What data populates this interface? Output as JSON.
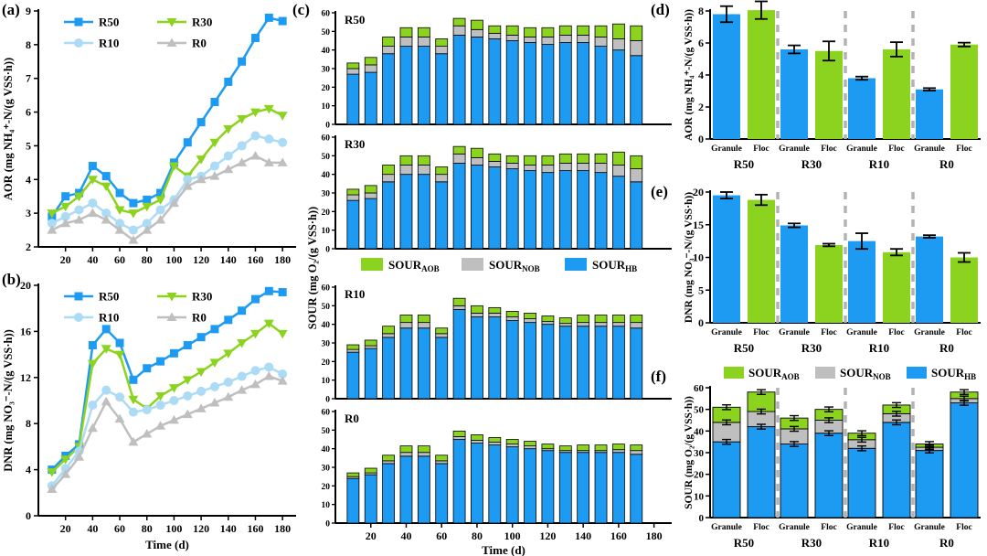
{
  "colors": {
    "blue": "#1D9BF2",
    "green": "#8CD31F",
    "lightblue": "#ABDBF5",
    "gray": "#BFBFBF",
    "axis": "#000000",
    "separator": "#B3B3B3"
  },
  "panel_letters": {
    "a": "(a)",
    "b": "(b)",
    "c": "(c)",
    "d": "(d)",
    "e": "(e)",
    "f": "(f)"
  },
  "chart_data": [
    {
      "id": "a",
      "type": "line",
      "ylabel": "AOR (mg NH₄⁺-N/(g VSS·h))",
      "xlabel": "",
      "ylim": [
        2,
        9
      ],
      "yticks": [
        2,
        3,
        4,
        5,
        6,
        7,
        8,
        9
      ],
      "xticks": [
        20,
        40,
        60,
        80,
        100,
        120,
        140,
        160,
        180
      ],
      "x": [
        10,
        20,
        30,
        40,
        50,
        60,
        70,
        80,
        90,
        100,
        110,
        120,
        130,
        140,
        150,
        160,
        170,
        180
      ],
      "series": [
        {
          "name": "R50",
          "color": "blue",
          "marker": "square",
          "values": [
            2.9,
            3.5,
            3.6,
            4.4,
            4.1,
            3.6,
            3.3,
            3.4,
            3.6,
            4.5,
            5.1,
            5.7,
            6.3,
            6.9,
            7.5,
            8.2,
            8.8,
            8.7
          ]
        },
        {
          "name": "R30",
          "color": "green",
          "marker": "tri-down",
          "values": [
            3.0,
            3.2,
            3.5,
            4.0,
            3.8,
            3.1,
            3.0,
            3.2,
            3.4,
            4.4,
            4.1,
            4.6,
            5.1,
            5.5,
            5.8,
            6.0,
            6.1,
            5.9
          ]
        },
        {
          "name": "R10",
          "color": "lightblue",
          "marker": "circle",
          "values": [
            2.7,
            2.9,
            3.1,
            3.3,
            3.0,
            2.7,
            2.5,
            2.7,
            3.1,
            3.4,
            4.0,
            4.1,
            4.4,
            4.7,
            5.0,
            5.3,
            5.2,
            5.1
          ]
        },
        {
          "name": "R0",
          "color": "gray",
          "marker": "tri-up",
          "values": [
            2.5,
            2.7,
            2.8,
            3.0,
            2.8,
            2.5,
            2.2,
            2.5,
            2.8,
            3.3,
            3.8,
            4.0,
            4.1,
            4.3,
            4.5,
            4.7,
            4.5,
            4.5
          ]
        }
      ]
    },
    {
      "id": "b",
      "type": "line",
      "ylabel": "DNR (mg NO₃⁻-N/(g VSS·h))",
      "xlabel": "Time (d)",
      "ylim": [
        0,
        20
      ],
      "yticks": [
        0,
        4,
        8,
        12,
        16,
        20
      ],
      "xticks": [
        20,
        40,
        60,
        80,
        100,
        120,
        140,
        160,
        180
      ],
      "x": [
        10,
        20,
        30,
        40,
        50,
        60,
        70,
        80,
        90,
        100,
        110,
        120,
        130,
        140,
        150,
        160,
        170,
        180
      ],
      "series": [
        {
          "name": "R50",
          "color": "blue",
          "marker": "square",
          "values": [
            4.0,
            5.2,
            6.2,
            14.8,
            16.2,
            15.0,
            11.8,
            12.8,
            13.4,
            14.1,
            14.8,
            15.5,
            16.2,
            17.0,
            17.8,
            18.8,
            19.5,
            19.4
          ]
        },
        {
          "name": "R30",
          "color": "green",
          "marker": "tri-down",
          "values": [
            3.8,
            4.9,
            6.0,
            13.2,
            14.5,
            14.0,
            10.1,
            9.3,
            10.4,
            11.1,
            11.8,
            12.5,
            13.3,
            14.1,
            15.0,
            15.8,
            16.7,
            15.8
          ]
        },
        {
          "name": "R10",
          "color": "lightblue",
          "marker": "circle",
          "values": [
            2.6,
            4.1,
            5.6,
            9.6,
            10.9,
            10.3,
            9.0,
            9.2,
            9.6,
            10.0,
            10.4,
            10.8,
            11.2,
            11.6,
            12.1,
            12.6,
            12.9,
            12.3
          ]
        },
        {
          "name": "R0",
          "color": "gray",
          "marker": "tri-up",
          "values": [
            2.3,
            3.6,
            5.1,
            7.6,
            9.9,
            8.4,
            6.4,
            7.1,
            7.8,
            8.3,
            8.8,
            9.3,
            9.8,
            10.3,
            10.9,
            11.4,
            12.1,
            11.7
          ]
        }
      ]
    },
    {
      "id": "c",
      "type": "stacked-bar",
      "ylabel": "SOUR (mg O₂/(g VSS·h))",
      "xlabel": "Time (d)",
      "ylim": [
        0,
        60
      ],
      "yticks": [
        0,
        10,
        20,
        30,
        40,
        50,
        60
      ],
      "xticks": [
        20,
        40,
        60,
        80,
        100,
        120,
        140,
        160,
        180
      ],
      "x": [
        10,
        20,
        30,
        40,
        50,
        60,
        70,
        80,
        90,
        100,
        110,
        120,
        130,
        140,
        150,
        160,
        170
      ],
      "legend": [
        {
          "label": "SOUR",
          "sub": "AOB",
          "color": "green"
        },
        {
          "label": "SOUR",
          "sub": "NOB",
          "color": "gray"
        },
        {
          "label": "SOUR",
          "sub": "HB",
          "color": "blue"
        }
      ],
      "subpanels": [
        {
          "label": "R50",
          "hb": [
            27,
            28,
            38,
            42,
            42,
            38,
            48,
            47,
            46,
            45,
            44,
            43,
            44,
            44,
            42,
            40,
            37
          ],
          "nob": [
            3,
            4,
            4,
            5,
            5,
            4,
            5,
            4,
            3,
            3,
            3,
            4,
            4,
            4,
            5,
            6,
            8
          ],
          "aob": [
            3,
            4,
            5,
            5,
            5,
            4,
            4,
            5,
            4,
            5,
            5,
            5,
            5,
            5,
            6,
            8,
            8
          ]
        },
        {
          "label": "R30",
          "hb": [
            26,
            27,
            36,
            40,
            40,
            36,
            46,
            45,
            44,
            43,
            42,
            41,
            42,
            42,
            41,
            39,
            36
          ],
          "nob": [
            3,
            3,
            4,
            5,
            5,
            4,
            5,
            4,
            3,
            3,
            3,
            4,
            4,
            4,
            5,
            6,
            7
          ],
          "aob": [
            3,
            4,
            5,
            5,
            5,
            4,
            4,
            5,
            4,
            4,
            5,
            5,
            5,
            5,
            5,
            7,
            7
          ]
        },
        {
          "label": "R10",
          "hb": [
            25,
            27,
            33,
            38,
            38,
            33,
            48,
            44,
            44,
            42,
            41,
            40,
            39,
            39,
            39,
            39,
            38
          ],
          "nob": [
            1.5,
            1.5,
            2,
            3,
            3,
            2,
            2,
            2,
            2,
            2,
            2,
            1.5,
            1.5,
            2,
            2,
            2,
            3
          ],
          "aob": [
            2.5,
            3,
            4,
            4,
            4,
            3,
            4,
            4,
            3,
            3,
            3,
            3,
            3,
            4,
            4,
            4,
            4
          ]
        },
        {
          "label": "R0",
          "hb": [
            24,
            26,
            32,
            36,
            36,
            32,
            45,
            43,
            42,
            41,
            40,
            39,
            38,
            38,
            38,
            38,
            37
          ],
          "nob": [
            1,
            1,
            1.5,
            2,
            2,
            1.5,
            1.5,
            1.5,
            1.5,
            1.5,
            1.5,
            1,
            1,
            1,
            1,
            1.5,
            2
          ],
          "aob": [
            2,
            2.5,
            3,
            3.5,
            3.5,
            3,
            3,
            3,
            2.5,
            2.5,
            2.5,
            2.5,
            2.5,
            3,
            3,
            3,
            3
          ]
        }
      ]
    },
    {
      "id": "d",
      "type": "grouped-bar",
      "ylabel": "AOR (mg NH₄⁺-N/(g VSS·h))",
      "ylim": [
        0,
        8
      ],
      "yticks": [
        0,
        2,
        4,
        6,
        8
      ],
      "groups": [
        "R50",
        "R30",
        "R10",
        "R0"
      ],
      "series": [
        {
          "name": "Granule",
          "color": "blue",
          "values": [
            7.8,
            5.6,
            3.8,
            3.1
          ],
          "errors": [
            0.5,
            0.25,
            0.1,
            0.08
          ]
        },
        {
          "name": "Floc",
          "color": "green",
          "values": [
            8.05,
            5.5,
            5.6,
            5.9
          ],
          "errors": [
            0.55,
            0.6,
            0.45,
            0.12
          ]
        }
      ]
    },
    {
      "id": "e",
      "type": "grouped-bar",
      "ylabel": "DNR (mg NO₃⁻-N/(g VSS·h))",
      "ylim": [
        0,
        20
      ],
      "yticks": [
        0,
        5,
        10,
        15,
        20
      ],
      "groups": [
        "R50",
        "R30",
        "R10",
        "R0"
      ],
      "series": [
        {
          "name": "Granule",
          "color": "blue",
          "values": [
            19.5,
            14.9,
            12.5,
            13.2
          ],
          "errors": [
            0.5,
            0.3,
            1.2,
            0.2
          ]
        },
        {
          "name": "Floc",
          "color": "green",
          "values": [
            18.8,
            11.9,
            10.8,
            10.0
          ],
          "errors": [
            0.8,
            0.2,
            0.5,
            0.7
          ]
        }
      ]
    },
    {
      "id": "f",
      "type": "stacked-grouped-bar",
      "ylabel": "SOUR (mg O₂/(g VSS·h))",
      "ylim": [
        0,
        60
      ],
      "yticks": [
        0,
        10,
        20,
        30,
        40,
        50,
        60
      ],
      "groups": [
        "R50",
        "R30",
        "R10",
        "R0"
      ],
      "segment_err": 1.1,
      "legend": [
        {
          "label": "SOUR",
          "sub": "AOB",
          "color": "green"
        },
        {
          "label": "SOUR",
          "sub": "NOB",
          "color": "gray"
        },
        {
          "label": "SOUR",
          "sub": "HB",
          "color": "blue"
        }
      ],
      "series": [
        {
          "name": "Granule",
          "hb": [
            35,
            34,
            32,
            31
          ],
          "nob": [
            9,
            7,
            4,
            1.5
          ],
          "aob": [
            7,
            5,
            3,
            1.5
          ]
        },
        {
          "name": "Floc",
          "hb": [
            42,
            39,
            44,
            53
          ],
          "nob": [
            7,
            6,
            4,
            2
          ],
          "aob": [
            9,
            5,
            4,
            3
          ]
        }
      ]
    }
  ]
}
